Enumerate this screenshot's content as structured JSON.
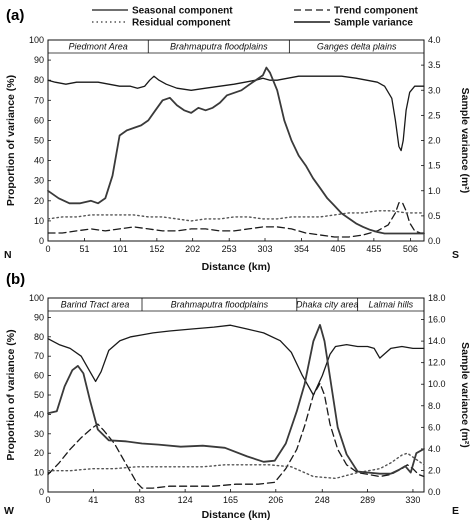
{
  "chart_data": [
    {
      "type": "line",
      "panel_label": "(a)",
      "title": "",
      "xlabel": "Distance (km)",
      "ylabel": "Proportion of variance (%)",
      "ylabel_right": "Sample variance (m²)",
      "xlim": [
        0,
        525
      ],
      "ylim": [
        0,
        100
      ],
      "ylim_right": [
        0,
        4.0
      ],
      "x_ticks": [
        0,
        51,
        101,
        152,
        202,
        253,
        303,
        354,
        405,
        455,
        506
      ],
      "y_ticks": [
        0,
        10,
        20,
        30,
        40,
        50,
        60,
        70,
        80,
        90,
        100
      ],
      "y_ticks_right": [
        "0.0",
        "0.5",
        "1.0",
        "1.5",
        "2.0",
        "2.5",
        "3.0",
        "3.5",
        "4.0"
      ],
      "grid": false,
      "direction_start": "N",
      "direction_end": "S",
      "regions": [
        {
          "label": "Piedmont Area",
          "start": 0,
          "end": 140
        },
        {
          "label": "Brahmaputra floodplains",
          "start": 140,
          "end": 337
        },
        {
          "label": "Ganges delta plains",
          "start": 337,
          "end": 525
        }
      ],
      "series": [
        {
          "name": "Seasonal component",
          "style": "solid",
          "axis": "left",
          "x": [
            0,
            10,
            25,
            40,
            55,
            70,
            85,
            100,
            115,
            125,
            135,
            142,
            148,
            155,
            165,
            180,
            200,
            220,
            240,
            260,
            275,
            290,
            300,
            310,
            320,
            335,
            350,
            370,
            390,
            410,
            430,
            445,
            460,
            470,
            480,
            485,
            490,
            493,
            496,
            500,
            505,
            512,
            520,
            525
          ],
          "y": [
            80,
            79,
            78,
            79,
            79,
            79,
            78,
            77,
            77,
            76,
            77,
            80,
            82,
            80,
            78,
            76,
            75,
            76,
            77,
            78,
            79,
            80,
            81,
            80,
            80,
            81,
            82,
            82,
            82,
            82,
            81,
            80,
            79,
            77,
            71,
            60,
            47,
            45,
            50,
            65,
            74,
            77,
            77,
            77
          ]
        },
        {
          "name": "Trend component",
          "style": "dashed",
          "axis": "left",
          "x": [
            0,
            20,
            40,
            60,
            80,
            100,
            120,
            140,
            160,
            180,
            200,
            220,
            240,
            260,
            280,
            300,
            320,
            340,
            360,
            380,
            400,
            420,
            440,
            460,
            475,
            485,
            490,
            495,
            500,
            505,
            512,
            520,
            525
          ],
          "y": [
            4,
            4,
            5,
            6,
            5,
            6,
            7,
            6,
            5,
            5,
            6,
            6,
            5,
            5,
            6,
            7,
            7,
            6,
            4,
            3,
            2,
            2,
            3,
            5,
            8,
            14,
            19,
            19,
            15,
            9,
            5,
            4,
            4
          ]
        },
        {
          "name": "Residual component",
          "style": "dotted",
          "axis": "left",
          "x": [
            0,
            20,
            40,
            60,
            80,
            100,
            120,
            140,
            160,
            180,
            200,
            220,
            240,
            260,
            280,
            300,
            320,
            340,
            360,
            380,
            400,
            420,
            440,
            460,
            480,
            500,
            525
          ],
          "y": [
            11,
            12,
            12,
            13,
            13,
            13,
            13,
            12,
            12,
            11,
            10,
            11,
            11,
            12,
            12,
            11,
            11,
            12,
            12,
            12,
            13,
            14,
            14,
            15,
            15,
            14,
            14
          ]
        },
        {
          "name": "Sample variance",
          "style": "solid-thick",
          "axis": "right",
          "x": [
            0,
            15,
            30,
            45,
            60,
            70,
            80,
            90,
            100,
            110,
            120,
            130,
            140,
            150,
            160,
            170,
            180,
            190,
            200,
            210,
            220,
            230,
            240,
            250,
            260,
            270,
            280,
            290,
            300,
            305,
            310,
            320,
            330,
            340,
            350,
            360,
            370,
            380,
            390,
            400,
            410,
            420,
            430,
            440,
            450,
            460,
            470,
            480,
            490,
            500,
            510,
            525
          ],
          "y": [
            1.0,
            0.85,
            0.75,
            0.75,
            0.8,
            0.75,
            0.85,
            1.3,
            2.1,
            2.2,
            2.25,
            2.3,
            2.4,
            2.6,
            2.8,
            2.85,
            2.7,
            2.6,
            2.55,
            2.65,
            2.6,
            2.65,
            2.75,
            2.9,
            2.95,
            3.0,
            3.1,
            3.2,
            3.3,
            3.45,
            3.35,
            3.0,
            2.4,
            2.0,
            1.7,
            1.5,
            1.25,
            1.05,
            0.85,
            0.7,
            0.55,
            0.45,
            0.35,
            0.28,
            0.22,
            0.18,
            0.15,
            0.15,
            0.15,
            0.15,
            0.15,
            0.15
          ]
        }
      ]
    },
    {
      "type": "line",
      "panel_label": "(b)",
      "title": "",
      "xlabel": "Distance (km)",
      "ylabel": "Proportion of variance (%)",
      "ylabel_right": "Sample variance (m²)",
      "xlim": [
        0,
        340
      ],
      "ylim": [
        0,
        100
      ],
      "ylim_right": [
        0,
        18.0
      ],
      "x_ticks": [
        0,
        41,
        83,
        124,
        165,
        206,
        248,
        289,
        330
      ],
      "y_ticks": [
        0,
        10,
        20,
        30,
        40,
        50,
        60,
        70,
        80,
        90,
        100
      ],
      "y_ticks_right": [
        "0.0",
        "2.0",
        "4.0",
        "6.0",
        "8.0",
        "10.0",
        "12.0",
        "14.0",
        "16.0",
        "18.0"
      ],
      "grid": false,
      "direction_start": "W",
      "direction_end": "E",
      "regions": [
        {
          "label": "Barind Tract area",
          "start": 0,
          "end": 85
        },
        {
          "label": "Brahmaputra floodplains",
          "start": 85,
          "end": 225
        },
        {
          "label": "Dhaka city area",
          "start": 225,
          "end": 280
        },
        {
          "label": "Lalmai hills",
          "start": 280,
          "end": 340
        }
      ],
      "series": [
        {
          "name": "Seasonal component",
          "style": "solid",
          "axis": "left",
          "x": [
            0,
            10,
            20,
            30,
            38,
            43,
            48,
            55,
            65,
            75,
            85,
            95,
            110,
            130,
            150,
            165,
            180,
            195,
            210,
            220,
            230,
            240,
            248,
            255,
            260,
            270,
            280,
            289,
            295,
            300,
            310,
            320,
            330,
            340
          ],
          "y": [
            79,
            76,
            74,
            70,
            62,
            57,
            62,
            73,
            78,
            80,
            81,
            82,
            83,
            84,
            85,
            86,
            84,
            82,
            78,
            72,
            60,
            50,
            60,
            71,
            75,
            76,
            75,
            75,
            74,
            69,
            74,
            75,
            74,
            74
          ]
        },
        {
          "name": "Trend component",
          "style": "dashed",
          "axis": "left",
          "x": [
            0,
            10,
            20,
            30,
            40,
            45,
            50,
            60,
            70,
            80,
            85,
            95,
            110,
            130,
            150,
            170,
            190,
            205,
            215,
            225,
            232,
            240,
            246,
            250,
            255,
            262,
            270,
            280,
            290,
            300,
            310,
            320,
            325,
            330,
            335,
            340
          ],
          "y": [
            9,
            15,
            22,
            28,
            33,
            35,
            32,
            25,
            15,
            5,
            2,
            2,
            3,
            3,
            3,
            4,
            4,
            5,
            12,
            22,
            34,
            50,
            56,
            50,
            35,
            22,
            14,
            10,
            9,
            8,
            9,
            12,
            14,
            12,
            9,
            8
          ]
        },
        {
          "name": "Residual component",
          "style": "dotted",
          "axis": "left",
          "x": [
            0,
            20,
            40,
            60,
            80,
            100,
            120,
            140,
            160,
            180,
            200,
            220,
            240,
            260,
            280,
            300,
            310,
            320,
            325,
            330,
            335,
            340
          ],
          "y": [
            11,
            11,
            12,
            12,
            13,
            13,
            13,
            13,
            14,
            14,
            14,
            13,
            8,
            7,
            10,
            12,
            15,
            19,
            20,
            18,
            16,
            14
          ]
        },
        {
          "name": "Sample variance",
          "style": "solid-thick",
          "axis": "right",
          "x": [
            0,
            8,
            15,
            22,
            27,
            32,
            38,
            45,
            55,
            70,
            85,
            100,
            120,
            140,
            160,
            180,
            195,
            205,
            215,
            225,
            232,
            240,
            246,
            250,
            256,
            262,
            270,
            280,
            290,
            300,
            310,
            318,
            323,
            328,
            333,
            340
          ],
          "y": [
            7.3,
            7.5,
            9.8,
            11.3,
            11.7,
            11.0,
            8.5,
            5.8,
            4.8,
            4.7,
            4.5,
            4.4,
            4.2,
            4.3,
            4.1,
            3.3,
            2.8,
            2.9,
            4.5,
            7.5,
            10.0,
            14.0,
            15.5,
            14.0,
            10.0,
            6.0,
            3.5,
            1.9,
            1.8,
            1.7,
            1.7,
            2.1,
            2.4,
            1.8,
            3.6,
            4.0
          ]
        }
      ]
    }
  ]
}
